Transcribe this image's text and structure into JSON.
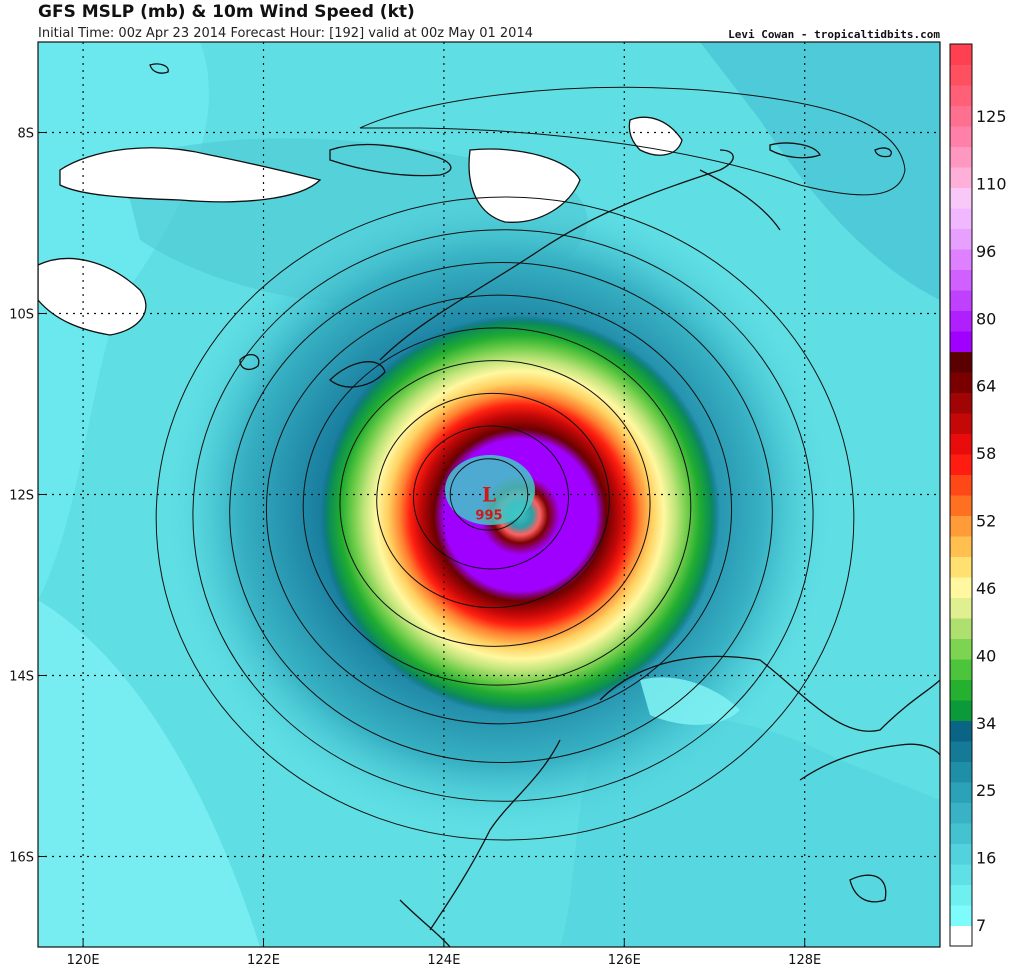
{
  "header": {
    "title": "GFS MSLP (mb) & 10m Wind Speed (kt)",
    "subtitle": "Initial Time: 00z Apr 23 2014 Forecast Hour: [192] valid at 00z May 01 2014",
    "credit": "Levi Cowan - tropicaltidbits.com"
  },
  "map": {
    "lon_range": [
      119.5,
      129.5
    ],
    "lat_range": [
      -17.0,
      -7.0
    ],
    "lon_ticks": [
      {
        "value": 120,
        "label": "120E"
      },
      {
        "value": 122,
        "label": "122E"
      },
      {
        "value": 124,
        "label": "124E"
      },
      {
        "value": 126,
        "label": "126E"
      },
      {
        "value": 128,
        "label": "128E"
      }
    ],
    "lat_ticks": [
      {
        "value": -8,
        "label": "8S"
      },
      {
        "value": -10,
        "label": "10S"
      },
      {
        "value": -12,
        "label": "12S"
      },
      {
        "value": -14,
        "label": "14S"
      },
      {
        "value": -16,
        "label": "16S"
      }
    ],
    "grid": "dotted",
    "low_center": {
      "symbol": "L",
      "pressure": "995",
      "lon": 124.5,
      "lat": -12.0,
      "color": "#d01818"
    },
    "isobar_count": 9
  },
  "colorbar": {
    "labels": [
      "125",
      "110",
      "96",
      "80",
      "64",
      "58",
      "52",
      "46",
      "40",
      "34",
      "25",
      "16",
      "7"
    ],
    "colors": [
      "#ffffff",
      "#7efcfc",
      "#6ef0f0",
      "#5ee0e6",
      "#52d2dc",
      "#44c2d0",
      "#38b2c4",
      "#2ca2b8",
      "#1f8fa8",
      "#147a98",
      "#0a6486",
      "#0a9a3a",
      "#25b030",
      "#4cc43c",
      "#7cd450",
      "#aee070",
      "#e0f090",
      "#fff8a0",
      "#ffe070",
      "#ffc050",
      "#ff9c38",
      "#ff7020",
      "#ff4818",
      "#ff1c10",
      "#e80c0c",
      "#c40808",
      "#a00404",
      "#7a0000",
      "#5a0000",
      "#a000ff",
      "#b020ff",
      "#c040ff",
      "#d060ff",
      "#de80ff",
      "#e8a0ff",
      "#f2b8ff",
      "#f8c8f8",
      "#ffb0d8",
      "#ff98c0",
      "#ff80a8",
      "#ff7090",
      "#ff6078",
      "#ff5060",
      "#ff4050"
    ]
  }
}
